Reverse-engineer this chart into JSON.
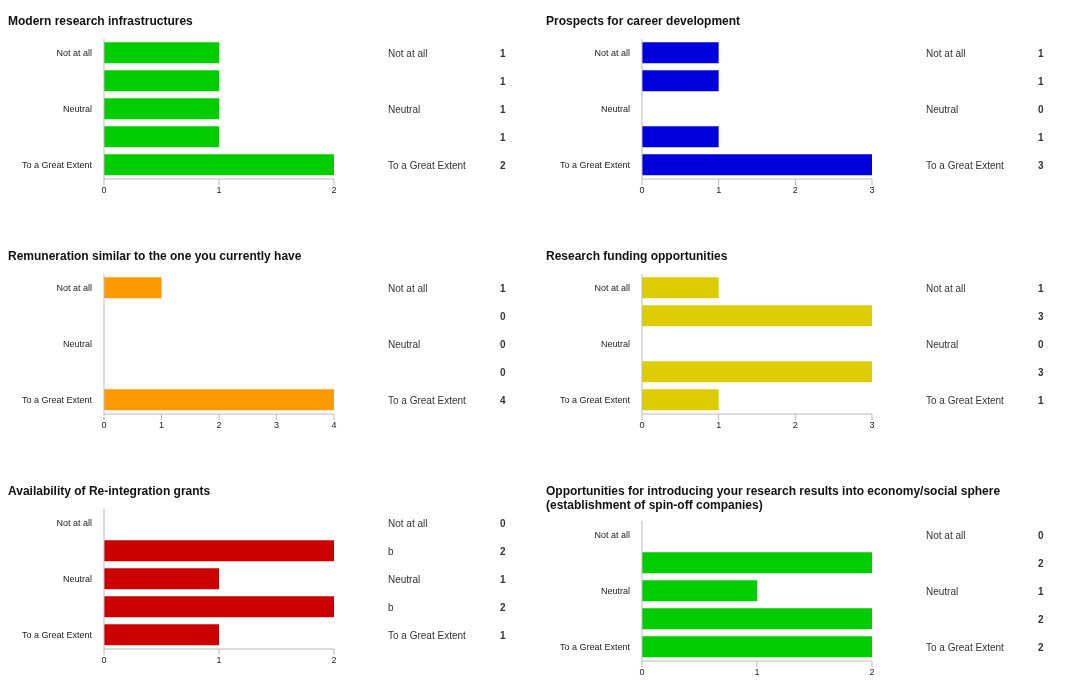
{
  "chart_data": [
    {
      "type": "bar",
      "orientation": "horizontal",
      "title": "Modern research infrastructures",
      "categories": [
        "Not at all",
        null,
        "Neutral",
        null,
        "To a Great Extent"
      ],
      "values": [
        1,
        1,
        1,
        1,
        2
      ],
      "color": "#00cc00",
      "xlim": [
        0,
        2
      ],
      "xticks": [
        0,
        1,
        2
      ],
      "data_labels": true
    },
    {
      "type": "bar",
      "orientation": "horizontal",
      "title": "Prospects for career development",
      "categories": [
        "Not at all",
        null,
        "Neutral",
        null,
        "To a Great Extent"
      ],
      "values": [
        1,
        1,
        0,
        1,
        3
      ],
      "color": "#0000dd",
      "xlim": [
        0,
        3
      ],
      "xticks": [
        0,
        1,
        2,
        3
      ],
      "data_labels": true
    },
    {
      "type": "bar",
      "orientation": "horizontal",
      "title": "Remuneration similar to the one you currently have",
      "categories": [
        "Not at all",
        null,
        "Neutral",
        null,
        "To a Great Extent"
      ],
      "values": [
        1,
        0,
        0,
        0,
        4
      ],
      "color": "#ff9900",
      "xlim": [
        0,
        4
      ],
      "xticks": [
        0,
        1,
        2,
        3,
        4
      ],
      "data_labels": true
    },
    {
      "type": "bar",
      "orientation": "horizontal",
      "title": "Research funding opportunities",
      "categories": [
        "Not at all",
        null,
        "Neutral",
        null,
        "To a Great Extent"
      ],
      "values": [
        1,
        3,
        0,
        3,
        1
      ],
      "color": "#ddcc00",
      "xlim": [
        0,
        3
      ],
      "xticks": [
        0,
        1,
        2,
        3
      ],
      "data_labels": true
    },
    {
      "type": "bar",
      "orientation": "horizontal",
      "title": "Availability of Re-integration grants",
      "categories": [
        "Not at all",
        null,
        "Neutral",
        null,
        "To a Great Extent"
      ],
      "values": [
        0,
        2,
        1,
        2,
        1
      ],
      "color": "#cc0000",
      "xlim": [
        0,
        2
      ],
      "xticks": [
        0,
        1,
        2
      ],
      "data_labels": true,
      "annotations": [
        "b",
        "b"
      ]
    },
    {
      "type": "bar",
      "orientation": "horizontal",
      "title": "Opportunities for introducing your research results into  economy/social sphere (establishment of spin-off companies)",
      "categories": [
        "Not at all",
        null,
        "Neutral",
        null,
        "To a Great Extent"
      ],
      "values": [
        0,
        2,
        1,
        2,
        2
      ],
      "color": "#00cc00",
      "xlim": [
        0,
        2
      ],
      "xticks": [
        0,
        1,
        2
      ],
      "data_labels": true
    }
  ]
}
